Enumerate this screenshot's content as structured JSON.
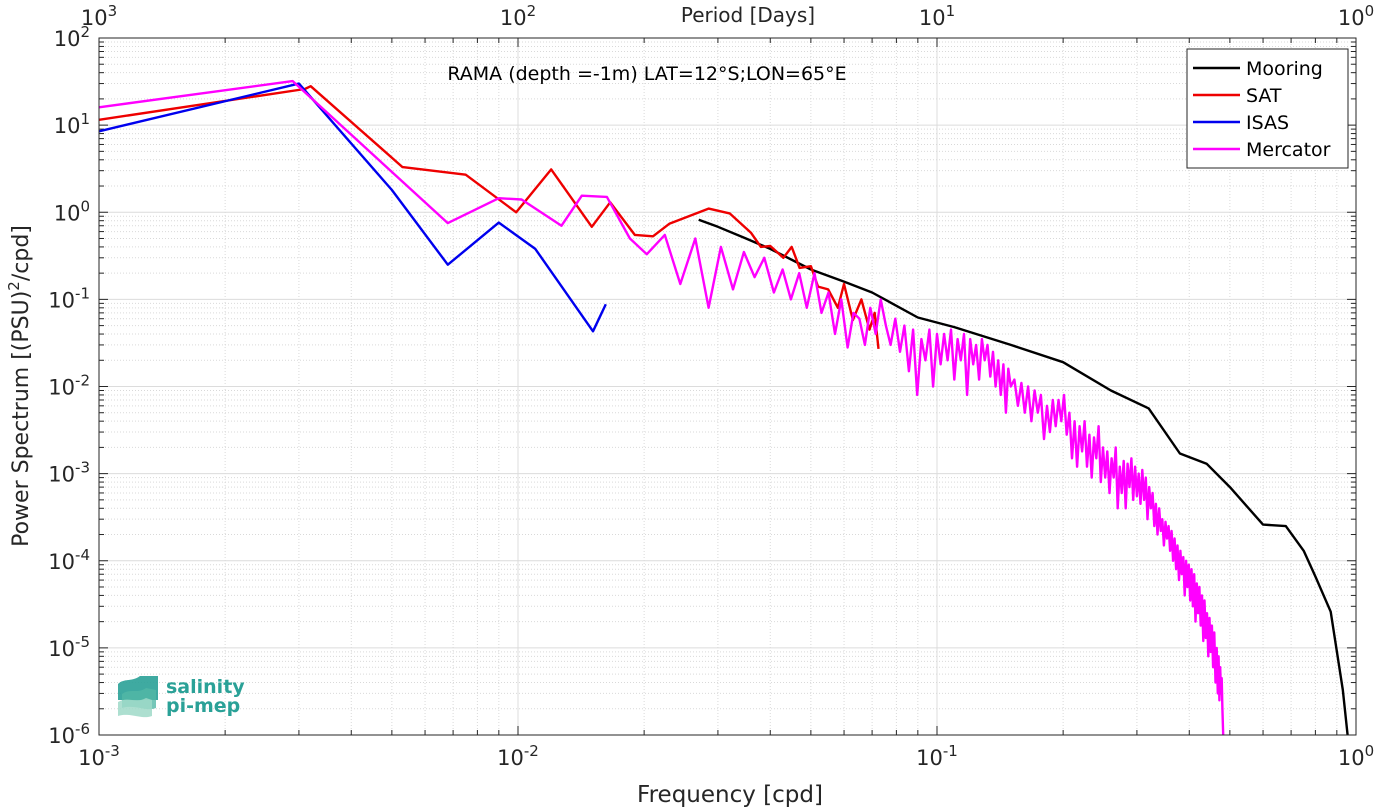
{
  "chart_data": {
    "type": "line",
    "title": "RAMA (depth =-1m) LAT=12°S;LON=65°E",
    "xlabel": "Frequency [cpd]",
    "ylabel": "Power Spectrum [(PSU)²/cpd]",
    "x2label": "Period [Days]",
    "x_scale": "log",
    "y_scale": "log",
    "xlim": [
      0.001,
      1
    ],
    "ylim": [
      1e-06,
      100
    ],
    "grid": true,
    "legend_position": "top-right",
    "x_ticks": [
      {
        "base": "10",
        "exp": "-3"
      },
      {
        "base": "10",
        "exp": "-2"
      },
      {
        "base": "10",
        "exp": "-1"
      },
      {
        "base": "10",
        "exp": "0"
      }
    ],
    "x2_ticks": [
      {
        "base": "10",
        "exp": "3"
      },
      {
        "base": "10",
        "exp": "2"
      },
      {
        "base": "10",
        "exp": "1"
      },
      {
        "base": "10",
        "exp": "0"
      }
    ],
    "y_ticks": [
      {
        "base": "10",
        "exp": "-6"
      },
      {
        "base": "10",
        "exp": "-5"
      },
      {
        "base": "10",
        "exp": "-4"
      },
      {
        "base": "10",
        "exp": "-3"
      },
      {
        "base": "10",
        "exp": "-2"
      },
      {
        "base": "10",
        "exp": "-1"
      },
      {
        "base": "10",
        "exp": "0"
      },
      {
        "base": "10",
        "exp": "1"
      },
      {
        "base": "10",
        "exp": "2"
      }
    ],
    "series": [
      {
        "name": "Mooring",
        "color": "#000000",
        "points": [
          [
            0.027,
            0.82
          ],
          [
            0.03,
            0.68
          ],
          [
            0.035,
            0.5
          ],
          [
            0.04,
            0.38
          ],
          [
            0.05,
            0.22
          ],
          [
            0.06,
            0.16
          ],
          [
            0.07,
            0.12
          ],
          [
            0.09,
            0.062
          ],
          [
            0.11,
            0.048
          ],
          [
            0.15,
            0.03
          ],
          [
            0.2,
            0.019
          ],
          [
            0.26,
            0.009
          ],
          [
            0.32,
            0.0056
          ],
          [
            0.38,
            0.0017
          ],
          [
            0.44,
            0.0013
          ],
          [
            0.5,
            0.0007
          ],
          [
            0.6,
            0.00026
          ],
          [
            0.68,
            0.00025
          ],
          [
            0.75,
            0.00013
          ],
          [
            0.8,
            6.6e-05
          ],
          [
            0.87,
            2.6e-05
          ],
          [
            0.93,
            3.3e-06
          ],
          [
            0.955,
            1e-06
          ]
        ]
      },
      {
        "name": "SAT",
        "color": "#ee0000",
        "points": [
          [
            0.001,
            11.5
          ],
          [
            0.0031,
            26
          ],
          [
            0.0032,
            28
          ],
          [
            0.0053,
            3.3
          ],
          [
            0.0075,
            2.7
          ],
          [
            0.0099,
            1.0
          ],
          [
            0.012,
            3.1
          ],
          [
            0.015,
            0.68
          ],
          [
            0.0166,
            1.3
          ],
          [
            0.019,
            0.55
          ],
          [
            0.021,
            0.53
          ],
          [
            0.023,
            0.74
          ],
          [
            0.0285,
            1.1
          ],
          [
            0.032,
            0.97
          ],
          [
            0.036,
            0.58
          ],
          [
            0.038,
            0.4
          ],
          [
            0.04,
            0.41
          ],
          [
            0.043,
            0.3
          ],
          [
            0.045,
            0.4
          ],
          [
            0.047,
            0.23
          ],
          [
            0.05,
            0.24
          ],
          [
            0.052,
            0.14
          ],
          [
            0.055,
            0.13
          ],
          [
            0.058,
            0.08
          ],
          [
            0.06,
            0.15
          ],
          [
            0.063,
            0.058
          ],
          [
            0.066,
            0.1
          ],
          [
            0.069,
            0.045
          ],
          [
            0.071,
            0.07
          ],
          [
            0.0725,
            0.027
          ]
        ]
      },
      {
        "name": "ISAS",
        "color": "#0000ee",
        "points": [
          [
            0.001,
            8.5
          ],
          [
            0.003,
            30
          ],
          [
            0.005,
            1.8
          ],
          [
            0.0068,
            0.25
          ],
          [
            0.009,
            0.76
          ],
          [
            0.011,
            0.38
          ],
          [
            0.0151,
            0.043
          ],
          [
            0.0162,
            0.088
          ]
        ]
      },
      {
        "name": "Mercator",
        "color": "#ff00ff",
        "points": [
          [
            0.001,
            16
          ],
          [
            0.0029,
            32
          ],
          [
            0.0068,
            0.75
          ],
          [
            0.009,
            1.45
          ],
          [
            0.0102,
            1.4
          ],
          [
            0.0127,
            0.7
          ],
          [
            0.0142,
            1.55
          ],
          [
            0.0163,
            1.5
          ],
          [
            0.0185,
            0.5
          ],
          [
            0.0203,
            0.33
          ],
          [
            0.0224,
            0.55
          ],
          [
            0.0244,
            0.15
          ],
          [
            0.0265,
            0.5
          ],
          [
            0.0285,
            0.08
          ],
          [
            0.0305,
            0.4
          ],
          [
            0.0326,
            0.13
          ],
          [
            0.0346,
            0.35
          ],
          [
            0.0367,
            0.18
          ],
          [
            0.0387,
            0.3
          ],
          [
            0.0408,
            0.12
          ],
          [
            0.0428,
            0.22
          ],
          [
            0.0448,
            0.1
          ],
          [
            0.0469,
            0.2
          ],
          [
            0.0489,
            0.08
          ],
          [
            0.051,
            0.2
          ],
          [
            0.053,
            0.07
          ],
          [
            0.0551,
            0.12
          ],
          [
            0.0571,
            0.04
          ],
          [
            0.0591,
            0.1
          ],
          [
            0.0612,
            0.028
          ],
          [
            0.0632,
            0.07
          ],
          [
            0.0653,
            0.06
          ],
          [
            0.0673,
            0.03
          ],
          [
            0.0693,
            0.08
          ],
          [
            0.0714,
            0.04
          ],
          [
            0.0734,
            0.1
          ],
          [
            0.0755,
            0.05
          ],
          [
            0.0775,
            0.03
          ],
          [
            0.0795,
            0.06
          ],
          [
            0.0816,
            0.025
          ],
          [
            0.0836,
            0.05
          ],
          [
            0.0857,
            0.015
          ],
          [
            0.0877,
            0.045
          ],
          [
            0.0897,
            0.008
          ],
          [
            0.0918,
            0.035
          ],
          [
            0.0938,
            0.02
          ],
          [
            0.0959,
            0.045
          ],
          [
            0.0979,
            0.01
          ],
          [
            0.1,
            0.04
          ],
          [
            0.102,
            0.018
          ],
          [
            0.104,
            0.04
          ],
          [
            0.106,
            0.02
          ],
          [
            0.108,
            0.045
          ],
          [
            0.11,
            0.012
          ],
          [
            0.112,
            0.035
          ],
          [
            0.114,
            0.02
          ],
          [
            0.116,
            0.04
          ],
          [
            0.118,
            0.008
          ],
          [
            0.12,
            0.035
          ],
          [
            0.122,
            0.018
          ],
          [
            0.124,
            0.03
          ],
          [
            0.126,
            0.012
          ],
          [
            0.128,
            0.035
          ],
          [
            0.13,
            0.02
          ],
          [
            0.132,
            0.03
          ],
          [
            0.134,
            0.013
          ],
          [
            0.136,
            0.025
          ],
          [
            0.138,
            0.01
          ],
          [
            0.14,
            0.02
          ],
          [
            0.142,
            0.008
          ],
          [
            0.144,
            0.018
          ],
          [
            0.146,
            0.005
          ],
          [
            0.148,
            0.016
          ],
          [
            0.15,
            0.01
          ],
          [
            0.153,
            0.012
          ],
          [
            0.156,
            0.006
          ],
          [
            0.159,
            0.011
          ],
          [
            0.162,
            0.005
          ],
          [
            0.165,
            0.01
          ],
          [
            0.168,
            0.004
          ],
          [
            0.171,
            0.009
          ],
          [
            0.174,
            0.005
          ],
          [
            0.177,
            0.008
          ],
          [
            0.18,
            0.0025
          ],
          [
            0.183,
            0.006
          ],
          [
            0.186,
            0.003
          ],
          [
            0.189,
            0.007
          ],
          [
            0.192,
            0.0035
          ],
          [
            0.195,
            0.007
          ],
          [
            0.198,
            0.004
          ],
          [
            0.201,
            0.008
          ],
          [
            0.204,
            0.0028
          ],
          [
            0.207,
            0.005
          ],
          [
            0.21,
            0.0015
          ],
          [
            0.213,
            0.004
          ],
          [
            0.216,
            0.0012
          ],
          [
            0.219,
            0.0035
          ],
          [
            0.222,
            0.0018
          ],
          [
            0.225,
            0.004
          ],
          [
            0.228,
            0.0012
          ],
          [
            0.231,
            0.0028
          ],
          [
            0.234,
            0.0009
          ],
          [
            0.237,
            0.0026
          ],
          [
            0.24,
            0.0015
          ],
          [
            0.243,
            0.0035
          ],
          [
            0.246,
            0.0008
          ],
          [
            0.249,
            0.002
          ],
          [
            0.252,
            0.0009
          ],
          [
            0.255,
            0.0018
          ],
          [
            0.258,
            0.0006
          ],
          [
            0.261,
            0.0015
          ],
          [
            0.264,
            0.0009
          ],
          [
            0.267,
            0.002
          ],
          [
            0.27,
            0.0004
          ],
          [
            0.273,
            0.0012
          ],
          [
            0.276,
            0.0006
          ],
          [
            0.279,
            0.0014
          ],
          [
            0.282,
            0.0004
          ],
          [
            0.285,
            0.0013
          ],
          [
            0.288,
            0.0007
          ],
          [
            0.291,
            0.0015
          ],
          [
            0.294,
            0.0005
          ],
          [
            0.297,
            0.0012
          ],
          [
            0.3,
            0.00055
          ],
          [
            0.303,
            0.001
          ],
          [
            0.306,
            0.00045
          ],
          [
            0.309,
            0.0011
          ],
          [
            0.312,
            0.0005
          ],
          [
            0.315,
            0.0009
          ],
          [
            0.318,
            0.0003
          ],
          [
            0.321,
            0.0007
          ],
          [
            0.324,
            0.0004
          ],
          [
            0.327,
            0.0006
          ],
          [
            0.33,
            0.00025
          ],
          [
            0.333,
            0.00045
          ],
          [
            0.336,
            0.0002
          ],
          [
            0.339,
            0.0004
          ],
          [
            0.342,
            0.00022
          ],
          [
            0.345,
            0.0003
          ],
          [
            0.348,
            0.00015
          ],
          [
            0.351,
            0.00028
          ],
          [
            0.354,
            0.00018
          ],
          [
            0.357,
            0.00025
          ],
          [
            0.36,
            0.00013
          ],
          [
            0.363,
            0.00022
          ],
          [
            0.366,
            0.0001
          ],
          [
            0.369,
            0.00018
          ],
          [
            0.372,
            8e-05
          ],
          [
            0.375,
            0.00015
          ],
          [
            0.378,
            6e-05
          ],
          [
            0.381,
            0.00013
          ],
          [
            0.384,
            7e-05
          ],
          [
            0.387,
            0.00011
          ],
          [
            0.39,
            4e-05
          ],
          [
            0.393,
            0.0001
          ],
          [
            0.396,
            5e-05
          ],
          [
            0.399,
            9e-05
          ],
          [
            0.402,
            3.5e-05
          ],
          [
            0.405,
            8e-05
          ],
          [
            0.408,
            3e-05
          ],
          [
            0.411,
            7e-05
          ],
          [
            0.414,
            2e-05
          ],
          [
            0.417,
            5.5e-05
          ],
          [
            0.42,
            2.5e-05
          ],
          [
            0.423,
            5e-05
          ],
          [
            0.426,
            1.8e-05
          ],
          [
            0.429,
            4e-05
          ],
          [
            0.432,
            1.2e-05
          ],
          [
            0.435,
            3.5e-05
          ],
          [
            0.438,
            1.3e-05
          ],
          [
            0.441,
            2.5e-05
          ],
          [
            0.444,
            8e-06
          ],
          [
            0.447,
            2.2e-05
          ],
          [
            0.45,
            9e-06
          ],
          [
            0.453,
            1.8e-05
          ],
          [
            0.456,
            6e-06
          ],
          [
            0.459,
            1.5e-05
          ],
          [
            0.462,
            4e-06
          ],
          [
            0.465,
            1e-05
          ],
          [
            0.468,
            3e-06
          ],
          [
            0.47,
            8e-06
          ],
          [
            0.472,
            2.5e-06
          ],
          [
            0.474,
            6e-06
          ],
          [
            0.476,
            3e-06
          ],
          [
            0.478,
            4.5e-06
          ],
          [
            0.48,
            2e-06
          ],
          [
            0.482,
            1e-06
          ]
        ]
      }
    ]
  },
  "logo": {
    "line1": "salinity",
    "line2": "pi-mep",
    "color": "#2aa197"
  }
}
